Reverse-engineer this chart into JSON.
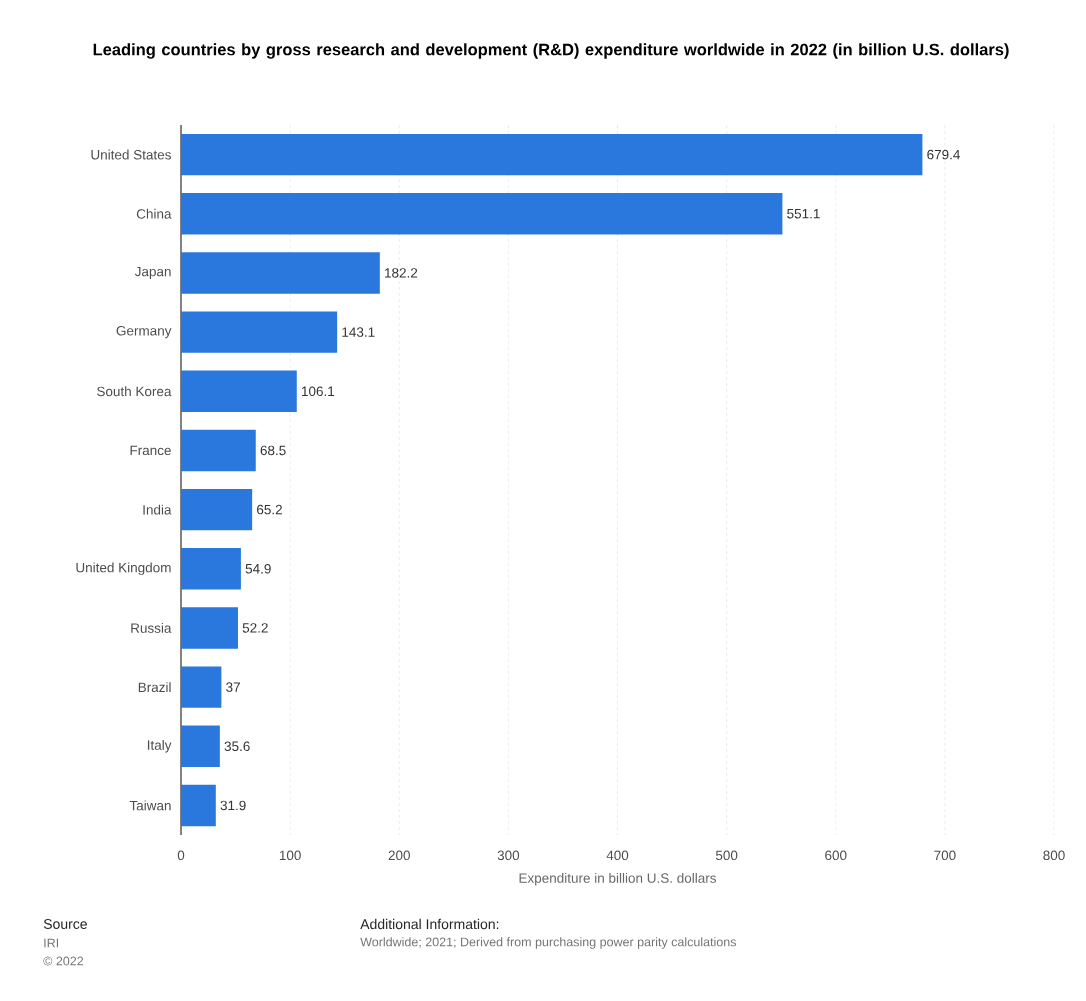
{
  "chart_data": {
    "type": "bar",
    "orientation": "horizontal",
    "title": "Leading countries by gross research and development (R&D) expenditure worldwide in 2022 (in billion U.S. dollars)",
    "xlabel": "Expenditure in billion U.S. dollars",
    "categories": [
      "United States",
      "China",
      "Japan",
      "Germany",
      "South Korea",
      "France",
      "India",
      "United Kingdom",
      "Russia",
      "Brazil",
      "Italy",
      "Taiwan"
    ],
    "values": [
      679.4,
      551.1,
      182.2,
      143.1,
      106.1,
      68.5,
      65.2,
      54.9,
      52.2,
      37,
      35.6,
      31.9
    ],
    "color": "#2a78de",
    "xlim": [
      0,
      800
    ],
    "xticks": [
      0,
      100,
      200,
      300,
      400,
      500,
      600,
      700,
      800
    ],
    "grid": "x",
    "data_labels": true,
    "annotations": [
      "Source",
      "IRI",
      "© 2022",
      "Additional Information:",
      "Worldwide; 2021; Derived from purchasing power parity calculations"
    ]
  }
}
